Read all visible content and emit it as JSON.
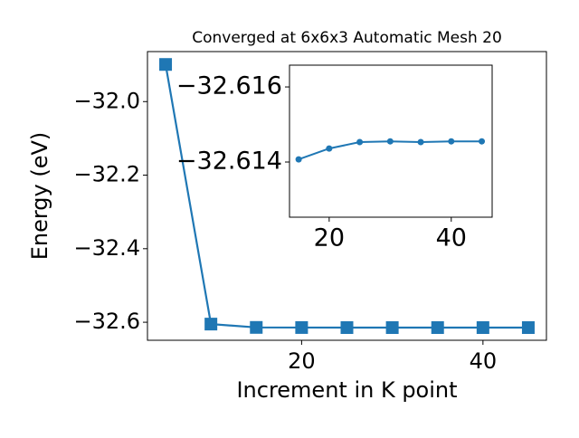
{
  "chart_data": [
    {
      "type": "line",
      "title": "Converged at 6x6x3 Automatic Mesh 20",
      "x_label": "Increment in K point",
      "y_label": "Energy (eV)",
      "x": [
        5,
        10,
        15,
        20,
        25,
        30,
        35,
        40,
        45
      ],
      "series": [
        {
          "color": "#1f77b4",
          "marker": "square",
          "values": [
            -31.899,
            -32.605,
            -32.61407,
            -32.61436,
            -32.61453,
            -32.61455,
            -32.61453,
            -32.61455,
            -32.61455
          ]
        }
      ],
      "xlim": [
        3,
        47
      ],
      "xticks": [
        20,
        40
      ],
      "ylim": [
        -32.649,
        -31.864
      ],
      "yticks": [
        {
          "value": -32.6,
          "label": "−32.6"
        },
        {
          "value": -32.4,
          "label": "−32.4"
        },
        {
          "value": -32.2,
          "label": "−32.2"
        },
        {
          "value": -32.0,
          "label": "−32.0"
        }
      ]
    },
    {
      "type": "line",
      "x": [
        15,
        20,
        25,
        30,
        35,
        40,
        45
      ],
      "series": [
        {
          "color": "#1f77b4",
          "marker": "circle",
          "values": [
            -32.61407,
            -32.61436,
            -32.61453,
            -32.61455,
            -32.61453,
            -32.61455,
            -32.61455
          ]
        }
      ],
      "xlim": [
        13.5,
        46.7
      ],
      "xticks": [
        20,
        40
      ],
      "ylim": [
        -32.61253,
        -32.61658
      ],
      "yticks": [
        {
          "value": -32.614,
          "label": "−32.614"
        },
        {
          "value": -32.616,
          "label": "−32.616"
        }
      ]
    }
  ]
}
